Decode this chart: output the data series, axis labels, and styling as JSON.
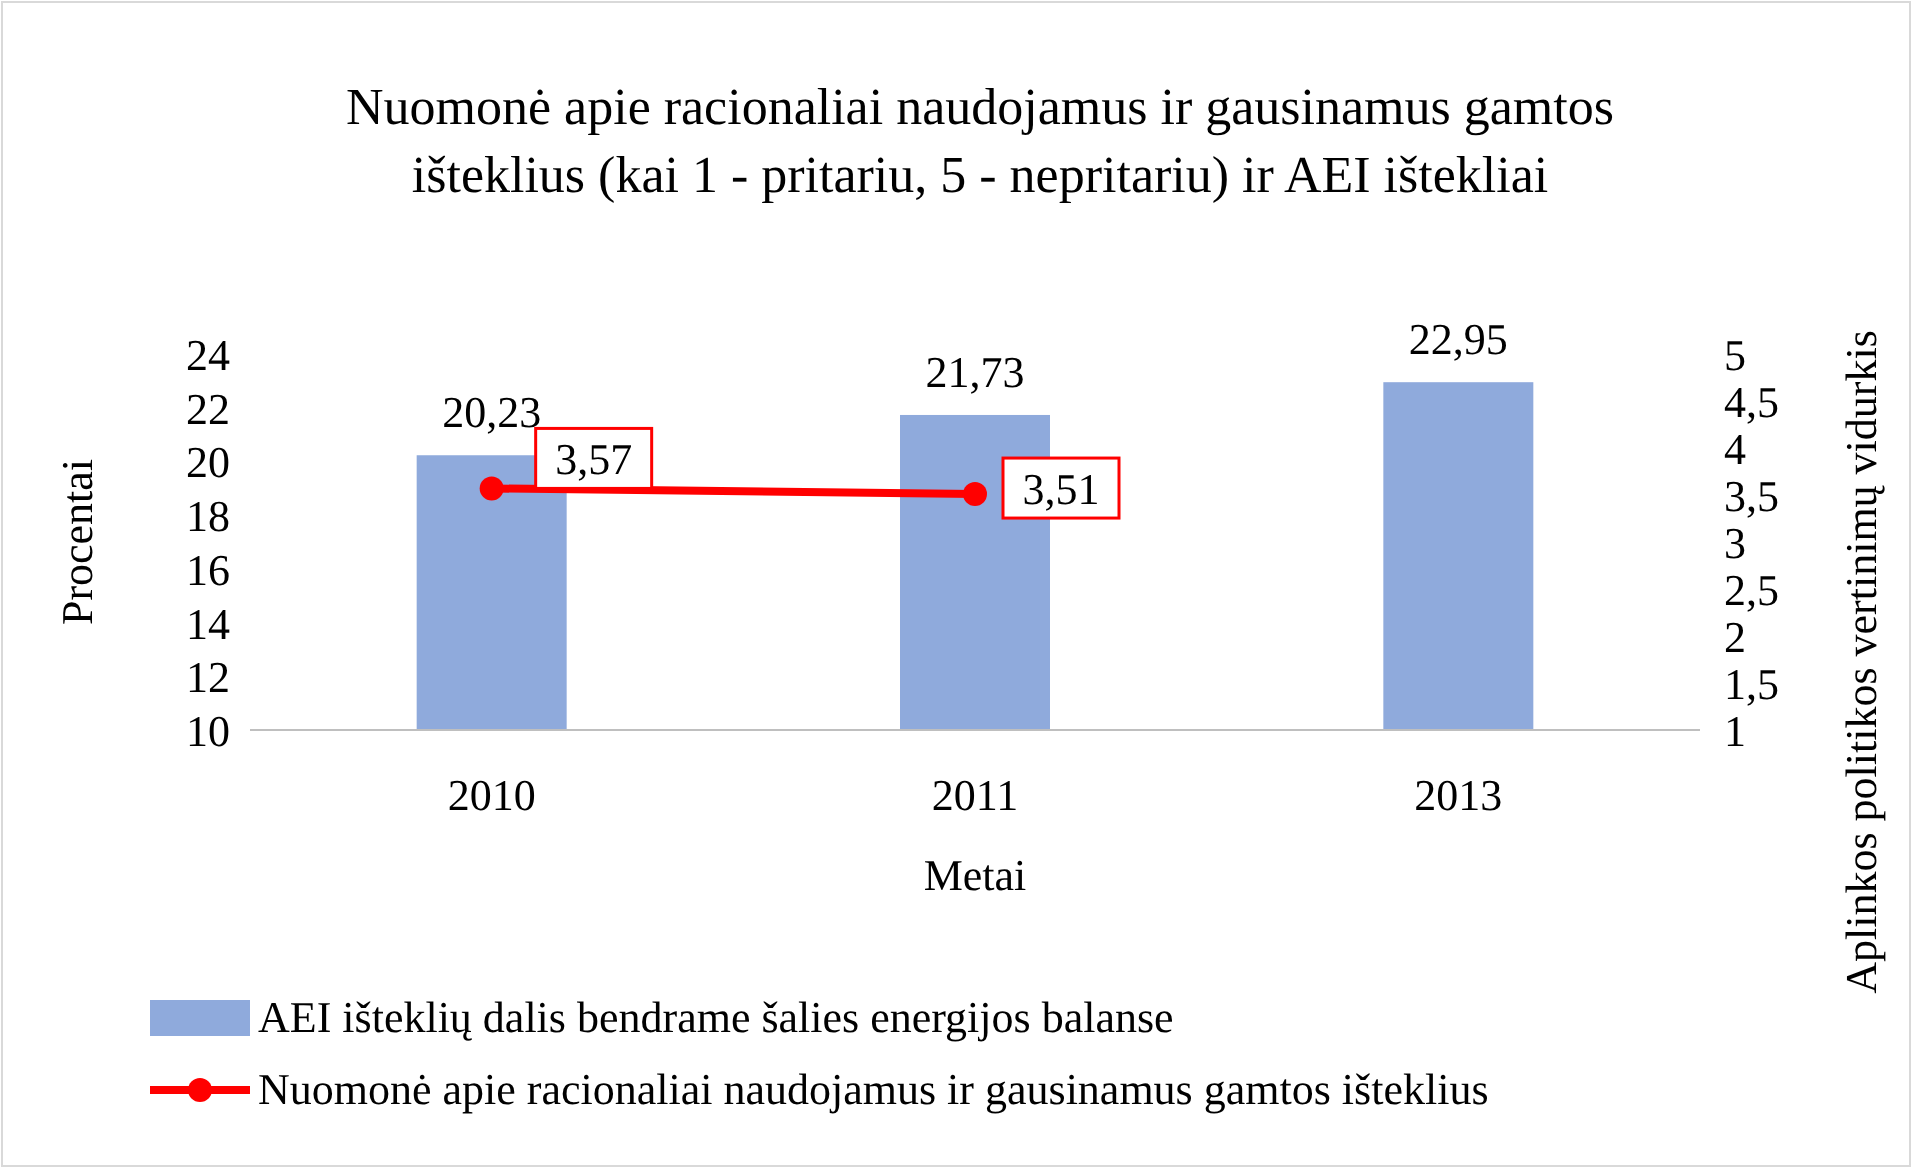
{
  "chart_data": {
    "type": "bar",
    "title": "Nuomonė apie racionaliai naudojamus ir gausinamus gamtos išteklius (kai 1 - pritariu, 5 - nepritariu) ir AEI ištekliai",
    "xlabel": "Metai",
    "ylabel": "Procentai",
    "y2label": "Aplinkos politikos vertinimų vidurkis",
    "categories": [
      "2010",
      "2011",
      "2013"
    ],
    "series": [
      {
        "name": "AEI išteklių dalis bendrame šalies energijos balanse",
        "color": "#8faadc",
        "values": [
          20.23,
          21.73,
          22.95
        ],
        "value_labels": [
          "20,23",
          "21,73",
          "22,95"
        ]
      },
      {
        "name": "Nuomonė apie racionaliai naudojamus ir gausinamus gamtos išteklius",
        "type": "line",
        "axis": "y2",
        "color": "#ff0000",
        "values": [
          3.57,
          3.51,
          null
        ],
        "value_labels": [
          "3,57",
          "3,51",
          null
        ],
        "marker": "circle",
        "line_style": "solid"
      }
    ],
    "ylim": [
      10,
      24
    ],
    "yticks": [
      10,
      12,
      14,
      16,
      18,
      20,
      22,
      24
    ],
    "y2lim": [
      1,
      5
    ],
    "y2ticks": [
      1,
      {
        "value": 1.5,
        "label": "1,5"
      },
      2,
      {
        "value": 2.5,
        "label": "2,5"
      },
      3,
      {
        "value": 3.5,
        "label": "3,5"
      },
      4,
      {
        "value": 4.5,
        "label": "4,5"
      },
      5
    ],
    "grid": false,
    "legend": "bottom"
  }
}
